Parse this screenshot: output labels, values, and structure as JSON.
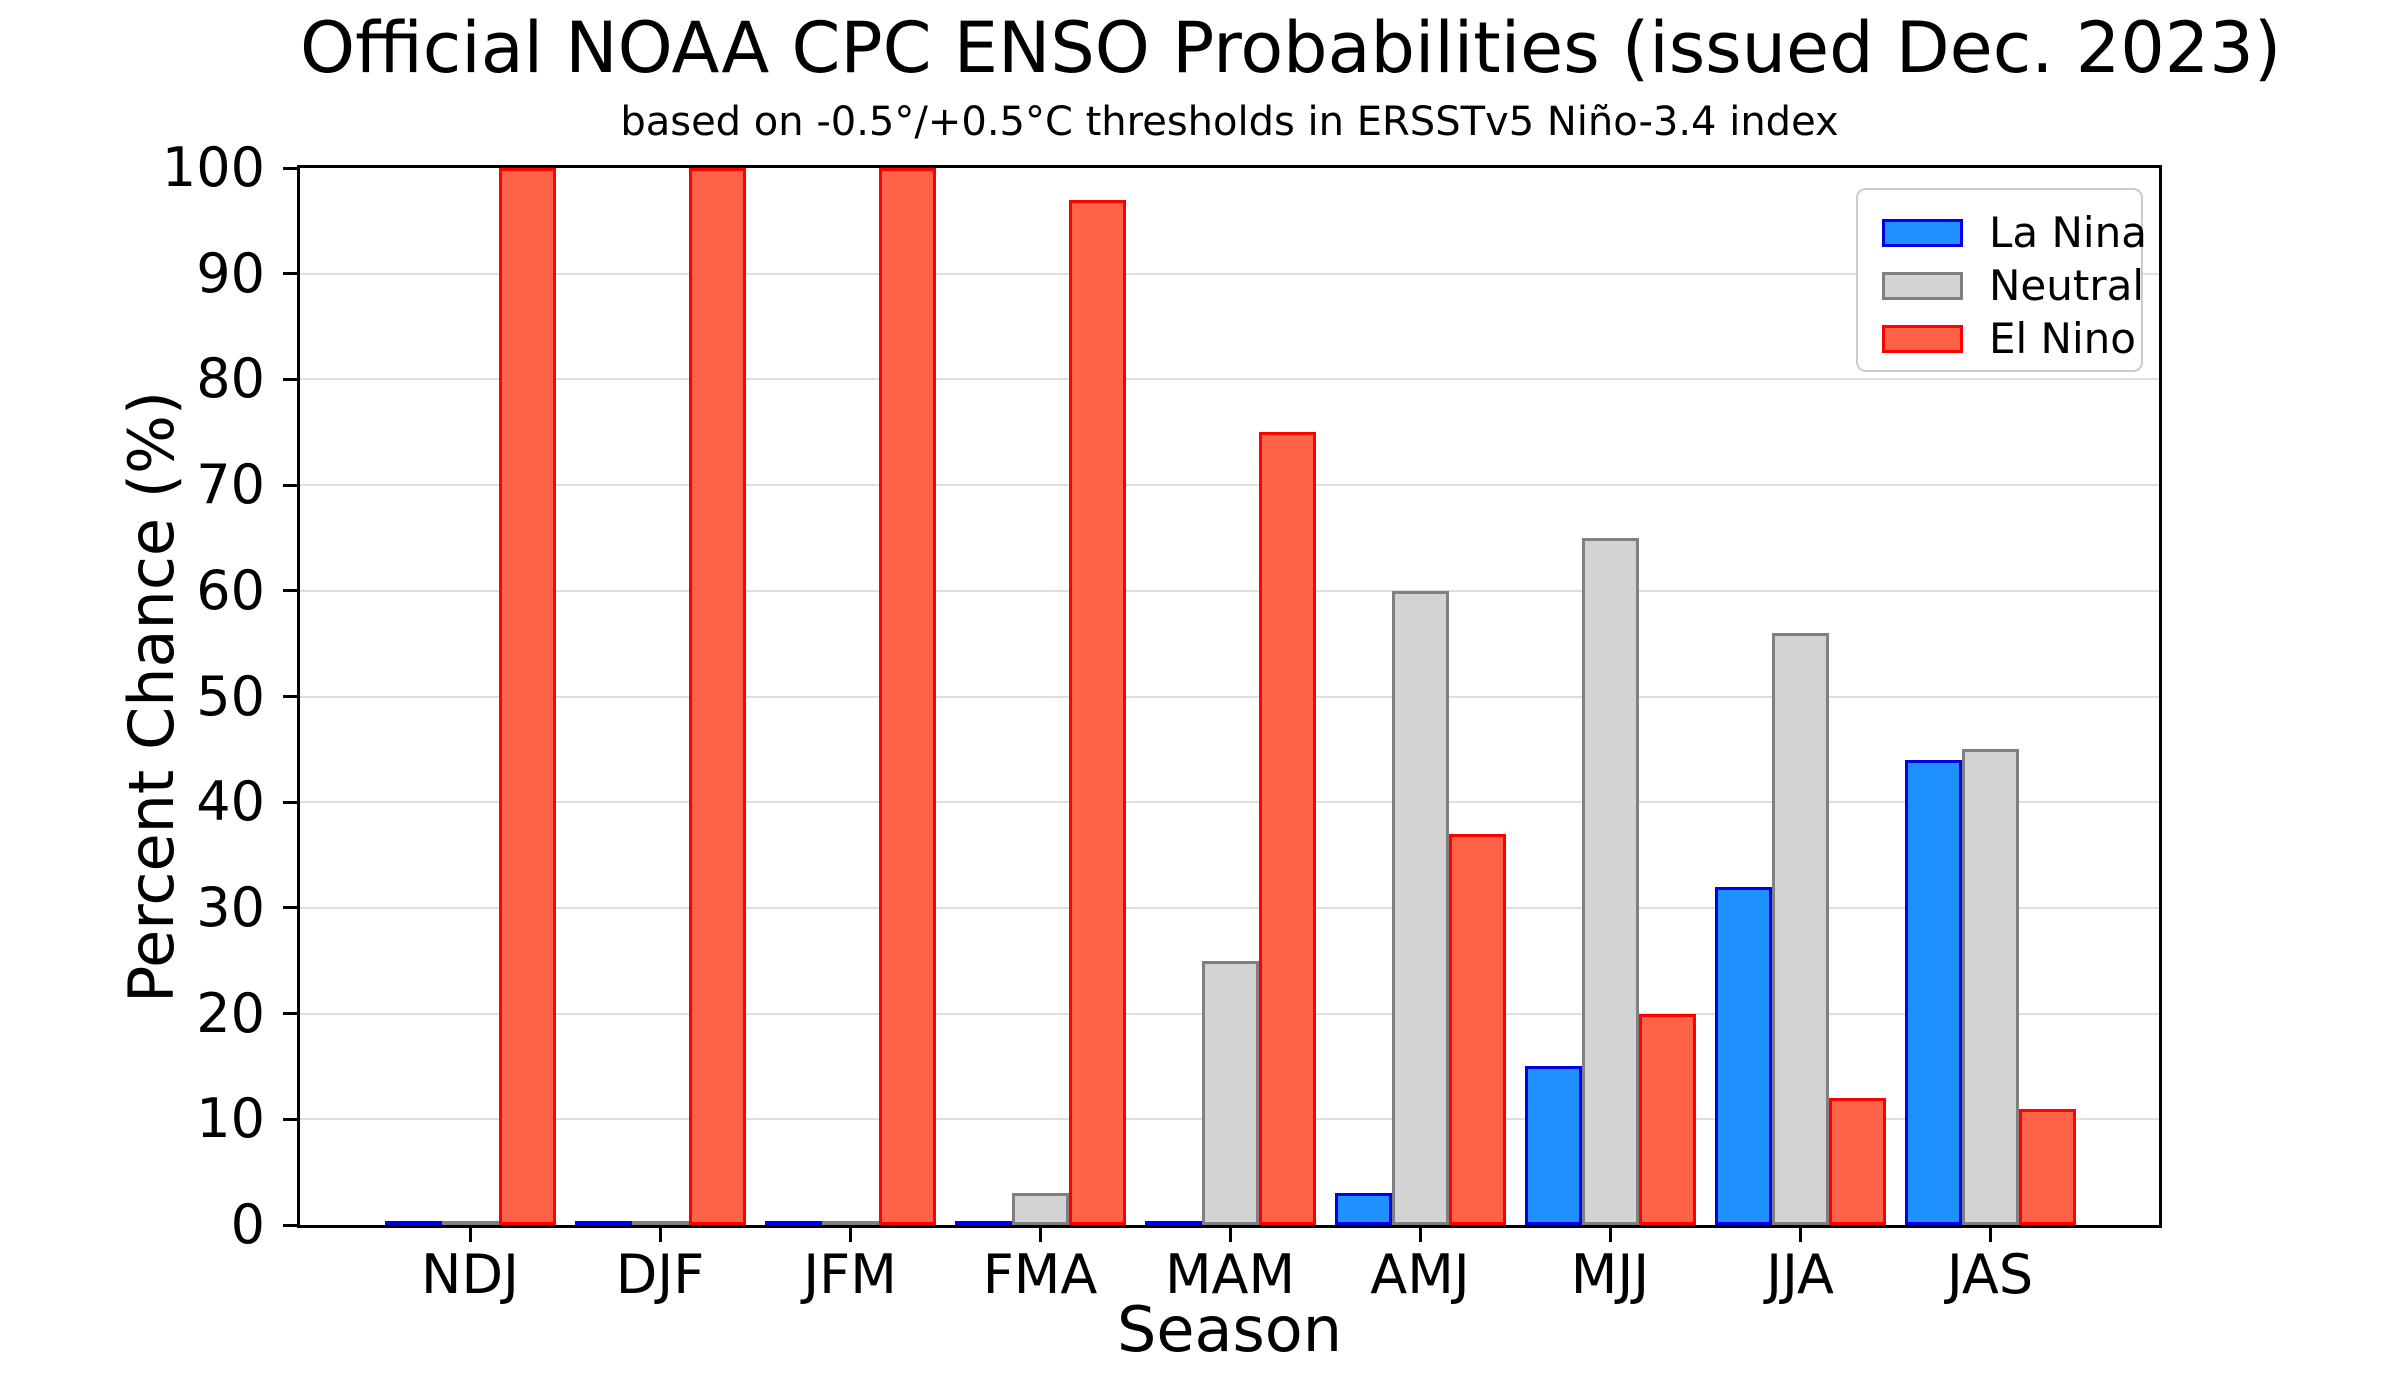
{
  "chart_data": {
    "type": "bar",
    "title": "Official NOAA CPC ENSO Probabilities (issued Dec. 2023)",
    "subtitle": "based on -0.5°/+0.5°C thresholds in ERSSTv5 Niño-3.4 index",
    "xlabel": "Season",
    "ylabel": "Percent Chance (%)",
    "categories": [
      "NDJ",
      "DJF",
      "JFM",
      "FMA",
      "MAM",
      "AMJ",
      "MJJ",
      "JJA",
      "JAS"
    ],
    "series": [
      {
        "name": "La Nina",
        "fill": "#1E90FF",
        "edge": "#0000E6",
        "values": [
          0,
          0,
          0,
          0,
          0,
          3,
          15,
          32,
          44
        ]
      },
      {
        "name": "Neutral",
        "fill": "#D3D3D3",
        "edge": "#808080",
        "values": [
          0,
          0,
          0,
          3,
          25,
          60,
          65,
          56,
          45
        ]
      },
      {
        "name": "El Nino",
        "fill": "#FF6347",
        "edge": "#FF0000",
        "values": [
          100,
          100,
          100,
          97,
          75,
          37,
          20,
          12,
          11
        ]
      }
    ],
    "ylim": [
      0,
      100
    ],
    "yticks": [
      0,
      10,
      20,
      30,
      40,
      50,
      60,
      70,
      80,
      90,
      100
    ],
    "grid": true,
    "grid_color": "#DEDEDE",
    "spine_color": "#000000",
    "legend_position": "upper right",
    "legend_border_color": "#CCCCCC"
  }
}
